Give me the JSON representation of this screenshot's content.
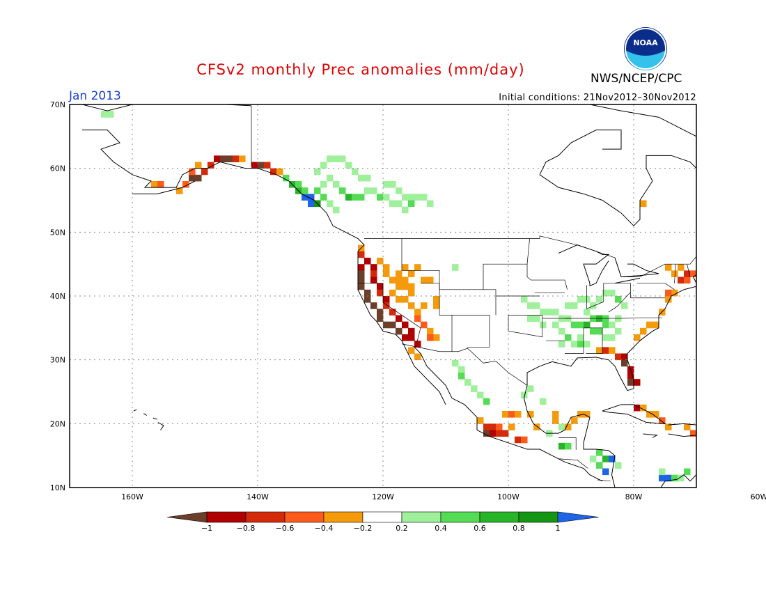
{
  "header": {
    "title": "CFSv2 monthly Prec anomalies (mm/day)",
    "agency": "NWS/NCEP/CPC",
    "valid_month": "Jan 2013",
    "initial_conditions": "Initial conditions: 21Nov2012–30Nov2012",
    "logo_text": "NOAA"
  },
  "axes": {
    "lat_labels": [
      "70N",
      "60N",
      "50N",
      "40N",
      "30N",
      "20N",
      "10N"
    ],
    "lon_labels": [
      "160W",
      "140W",
      "120W",
      "100W",
      "80W",
      "60W"
    ]
  },
  "colorbar": {
    "labels": [
      "−1",
      "−0.8",
      "−0.6",
      "−0.4",
      "−0.2",
      "0.2",
      "0.4",
      "0.6",
      "0.8",
      "1"
    ],
    "colors": [
      "#6b3f2a",
      "#b00000",
      "#d42a0a",
      "#ff5a1a",
      "#f59a0a",
      "#ffffff",
      "#9ef09a",
      "#54dc54",
      "#28b428",
      "#149614",
      "#1e64e6"
    ]
  },
  "colors": {
    "lt_m1": "#6b3f2a",
    "m08": "#b00000",
    "m06": "#d42a0a",
    "m04": "#ff5a1a",
    "m02": "#f59a0a",
    "p02": "#9ef09a",
    "p04": "#54dc54",
    "p06": "#28b428",
    "p08": "#149614",
    "gt_1": "#1e64e6"
  }
}
